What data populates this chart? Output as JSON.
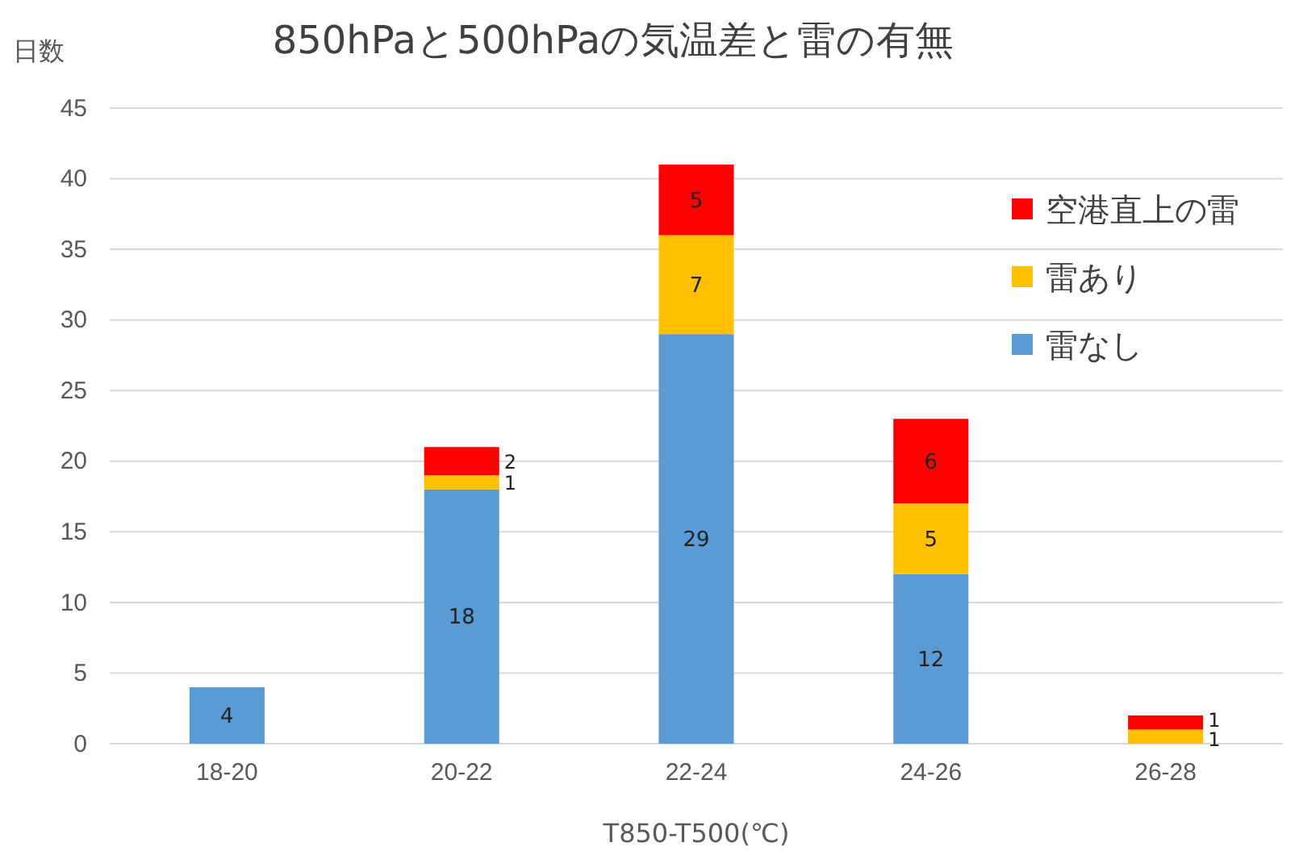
{
  "chart_data": {
    "type": "bar",
    "title": "850hPaと500hPaの気温差と雷の有無",
    "xlabel": "T850-T500(℃)",
    "ylabel": "日数",
    "categories": [
      "18-20",
      "20-22",
      "22-24",
      "24-26",
      "26-28"
    ],
    "stacked": true,
    "ylim": [
      0,
      45
    ],
    "yticks": [
      0,
      5,
      10,
      15,
      20,
      25,
      30,
      35,
      40,
      45
    ],
    "grid": "y",
    "legend": "top right",
    "series": [
      {
        "name": "雷なし",
        "color": "#5b9bd5",
        "values": [
          4,
          18,
          29,
          12,
          0
        ],
        "value_labels": [
          "4",
          "18",
          "29",
          "12",
          null
        ]
      },
      {
        "name": "雷あり",
        "color": "#ffc000",
        "values": [
          0,
          1,
          7,
          5,
          1
        ],
        "value_labels": [
          null,
          "1",
          "7",
          "5",
          "1"
        ]
      },
      {
        "name": "空港直上の雷",
        "color": "#ff0000",
        "values": [
          0,
          2,
          5,
          6,
          1
        ],
        "value_labels": [
          null,
          "2",
          "5",
          "6",
          "1"
        ]
      }
    ]
  }
}
